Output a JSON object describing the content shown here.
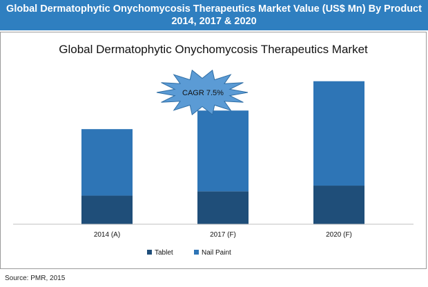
{
  "banner": {
    "line1": "Global Dermatophytic Onychomycosis Therapeutics Market Value (US$ Mn) By Product",
    "line2": "2014, 2017 & 2020"
  },
  "source": "Source: PMR, 2015",
  "colors": {
    "banner": "#2f7fc0",
    "tablet": "#1f4e79",
    "nail_paint": "#2e75b6",
    "starburst": "#5b9bd5"
  },
  "chart_data": {
    "type": "bar",
    "stacked": true,
    "title": "Global Dermatophytic Onychomycosis Therapeutics Market",
    "categories": [
      "2014 (A)",
      "2017 (F)",
      "2020 (F)"
    ],
    "series": [
      {
        "name": "Tablet",
        "values": [
          40,
          46,
          54
        ],
        "color": "#1f4e79"
      },
      {
        "name": "Nail Paint",
        "values": [
          93,
          113,
          146
        ],
        "color": "#2e75b6"
      }
    ],
    "ylim": [
      0,
      220
    ],
    "grid": false,
    "legend": "bottom",
    "annotation": "CAGR 7.5%"
  }
}
